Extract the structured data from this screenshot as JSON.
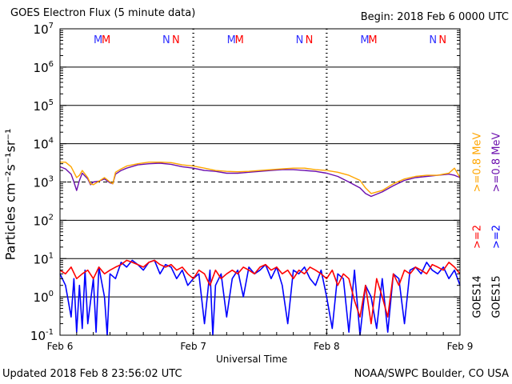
{
  "header": {
    "title": "GOES Electron Flux (5 minute data)",
    "begin": "Begin: 2018 Feb 6 0000 UTC"
  },
  "footer": {
    "updated": "Updated 2018 Feb  8 23:56:02 UTC",
    "credit": "NOAA/SWPC Boulder, CO USA"
  },
  "legend": {
    "goes14": "GOES14",
    "goes15": "GOES15",
    "goes14_hi": ">=2",
    "goes15_hi": ">=2",
    "goes14_lo": ">=0.8  MeV",
    "goes15_lo": ">=0.8  MeV"
  },
  "colors": {
    "goes14_hi": "#ff0000",
    "goes15_hi": "#0000ff",
    "goes14_lo": "#ffa500",
    "goes15_lo": "#6a0dad",
    "frame": "#000000",
    "background": "#ffffff"
  },
  "markers": {
    "day1": [
      "M",
      "M",
      "N",
      "N"
    ],
    "day2": [
      "M",
      "M",
      "N",
      "N"
    ],
    "day3": [
      "M",
      "M",
      "N",
      "N"
    ],
    "colors": [
      "#3030ff",
      "#ff0000",
      "#3030ff",
      "#ff0000"
    ]
  },
  "chart_data": {
    "type": "line",
    "title": "GOES Electron Flux (5 minute data)",
    "xlabel": "Universal Time",
    "ylabel": "Particles cm⁻²s⁻¹sr⁻¹",
    "yscale": "log",
    "ylim": [
      0.1,
      10000000
    ],
    "xlim": [
      0,
      72
    ],
    "x_units": "hours since 2018 Feb 6 0000 UTC",
    "x_ticks": [
      {
        "x": 0,
        "label": "Feb 6"
      },
      {
        "x": 24,
        "label": "Feb 7"
      },
      {
        "x": 48,
        "label": "Feb 8"
      },
      {
        "x": 72,
        "label": "Feb 9"
      }
    ],
    "y_ticks": [
      {
        "value": 0.1,
        "base": "10",
        "exp": "-1"
      },
      {
        "value": 1,
        "base": "10",
        "exp": "0"
      },
      {
        "value": 10,
        "base": "10",
        "exp": "1"
      },
      {
        "value": 100,
        "base": "10",
        "exp": "2"
      },
      {
        "value": 1000,
        "base": "10",
        "exp": "3"
      },
      {
        "value": 10000,
        "base": "10",
        "exp": "4"
      },
      {
        "value": 100000,
        "base": "10",
        "exp": "5"
      },
      {
        "value": 1000000,
        "base": "10",
        "exp": "6"
      },
      {
        "value": 10000000,
        "base": "10",
        "exp": "7"
      }
    ],
    "threshold": 1000,
    "grid": true,
    "series": [
      {
        "name": "GOES15 >=0.8 MeV",
        "x": [
          0,
          1,
          2,
          2.5,
          3,
          3.5,
          4,
          5,
          5.5,
          6,
          7,
          8,
          9,
          9.5,
          10,
          11,
          12,
          14,
          16,
          18,
          20,
          22,
          24,
          26,
          28,
          30,
          32,
          34,
          36,
          38,
          40,
          42,
          44,
          46,
          48,
          50,
          52,
          54,
          55,
          56,
          58,
          60,
          62,
          64,
          66,
          68,
          69,
          70,
          71,
          72
        ],
        "y": [
          2500,
          2200,
          1600,
          1000,
          600,
          1100,
          1700,
          1200,
          850,
          1000,
          1050,
          1200,
          950,
          900,
          1600,
          2000,
          2300,
          2800,
          3000,
          3100,
          2900,
          2500,
          2300,
          2000,
          1900,
          1700,
          1700,
          1800,
          1900,
          2000,
          2100,
          2100,
          2000,
          1900,
          1700,
          1400,
          1000,
          700,
          500,
          420,
          550,
          800,
          1100,
          1300,
          1400,
          1500,
          1550,
          1600,
          1500,
          1300
        ]
      },
      {
        "name": "GOES14 >=0.8 MeV",
        "x": [
          0,
          1,
          2,
          2.5,
          3,
          3.5,
          4,
          5,
          5.5,
          6,
          7,
          8,
          9,
          9.5,
          10,
          11,
          12,
          14,
          16,
          18,
          20,
          22,
          24,
          26,
          28,
          30,
          32,
          34,
          36,
          38,
          40,
          42,
          44,
          46,
          48,
          50,
          52,
          54,
          55,
          56,
          58,
          60,
          62,
          64,
          66,
          68,
          69,
          70,
          71,
          72
        ],
        "y": [
          3300,
          3300,
          2500,
          1800,
          1300,
          1500,
          2000,
          1300,
          900,
          850,
          1050,
          1300,
          1000,
          900,
          1800,
          2200,
          2600,
          3000,
          3300,
          3300,
          3200,
          2800,
          2600,
          2300,
          2000,
          1900,
          1850,
          1900,
          2000,
          2100,
          2200,
          2300,
          2300,
          2100,
          2000,
          1800,
          1500,
          1100,
          700,
          500,
          600,
          900,
          1200,
          1400,
          1500,
          1500,
          1600,
          1700,
          2300,
          1300
        ]
      },
      {
        "name": "GOES15 >=2 MeV",
        "x": [
          0,
          1,
          2,
          2.5,
          3,
          3.5,
          4,
          4.5,
          5,
          6,
          6.5,
          7,
          8,
          8.5,
          9,
          10,
          11,
          12,
          13,
          14,
          15,
          16,
          17,
          18,
          19,
          20,
          21,
          22,
          23,
          24,
          25,
          26,
          27,
          27.5,
          28,
          29,
          30,
          31,
          32,
          33,
          34,
          35,
          36,
          37,
          38,
          39,
          40,
          41,
          42,
          43,
          44,
          45,
          46,
          47,
          48,
          49,
          50,
          51,
          52,
          53,
          54,
          55,
          56,
          57,
          58,
          59,
          60,
          61,
          62,
          63,
          64,
          65,
          66,
          67,
          68,
          69,
          70,
          71,
          72
        ],
        "y": [
          4,
          2,
          0.3,
          3,
          0.12,
          2,
          0.15,
          5,
          0.2,
          3,
          0.12,
          6,
          1,
          0.1,
          4,
          3,
          8,
          6,
          9,
          7,
          5,
          8,
          9,
          4,
          7,
          6,
          3,
          5,
          2,
          3,
          4,
          0.2,
          5,
          0.1,
          2,
          4,
          0.3,
          3,
          5,
          1,
          6,
          4,
          5,
          7,
          3,
          6,
          2,
          0.2,
          5,
          4,
          6,
          3,
          2,
          5,
          1,
          0.15,
          4,
          3,
          0.12,
          5,
          0.1,
          2,
          1,
          0.15,
          3,
          0.12,
          4,
          3,
          0.2,
          5,
          6,
          4,
          8,
          5,
          4,
          6,
          3,
          5,
          2
        ]
      },
      {
        "name": "GOES14 >=2 MeV",
        "x": [
          0,
          1,
          2,
          3,
          4,
          5,
          6,
          7,
          8,
          9,
          10,
          11,
          12,
          13,
          14,
          15,
          16,
          17,
          18,
          19,
          20,
          21,
          22,
          23,
          24,
          25,
          26,
          27,
          28,
          29,
          30,
          31,
          32,
          33,
          34,
          35,
          36,
          37,
          38,
          39,
          40,
          41,
          42,
          43,
          44,
          45,
          46,
          47,
          48,
          49,
          50,
          51,
          52,
          53,
          54,
          55,
          56,
          57,
          58,
          59,
          60,
          61,
          62,
          63,
          64,
          65,
          66,
          67,
          68,
          69,
          70,
          71,
          72
        ],
        "y": [
          5,
          4,
          6,
          3,
          4,
          5,
          3,
          6,
          4,
          5,
          6,
          7,
          9,
          8,
          7,
          6,
          8,
          9,
          7,
          6,
          7,
          5,
          6,
          4,
          3,
          5,
          4,
          2,
          5,
          3,
          4,
          5,
          4,
          6,
          5,
          4,
          6,
          7,
          5,
          6,
          4,
          5,
          3,
          5,
          4,
          6,
          5,
          4,
          3,
          5,
          2,
          4,
          3,
          0.8,
          0.3,
          2,
          0.2,
          3,
          1,
          0.3,
          4,
          2,
          5,
          4,
          6,
          5,
          4,
          7,
          6,
          5,
          8,
          6,
          4
        ]
      }
    ]
  }
}
